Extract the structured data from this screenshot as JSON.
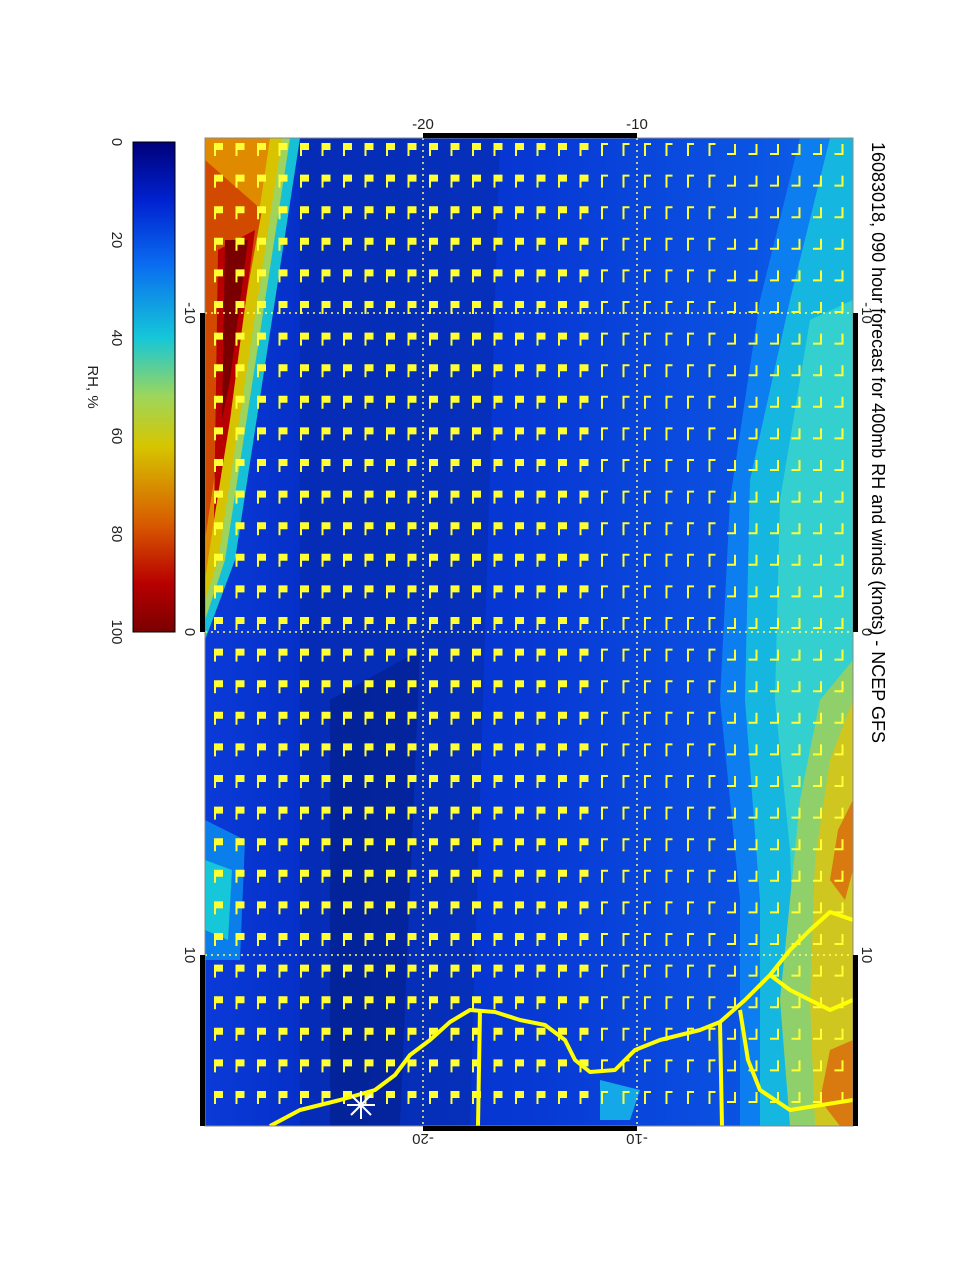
{
  "title": "16083018, 090 hour forecast for 400mb RH and winds (knots) - NCEP GFS",
  "colorbar": {
    "label": "RH, %",
    "ticks": [
      "0",
      "20",
      "40",
      "60",
      "80",
      "100"
    ],
    "stops": [
      "#00007a",
      "#0022d0",
      "#0a6cf0",
      "#15c7d8",
      "#9ed65a",
      "#d6c600",
      "#d85a00",
      "#b80000",
      "#7a0000"
    ]
  },
  "axes": {
    "top_ticks": [
      "-20",
      "-10"
    ],
    "bottom_ticks": [
      "-20",
      "-10"
    ],
    "left_ticks": [
      "-10",
      "0",
      "10"
    ],
    "right_ticks": [
      "-10",
      "0",
      "10"
    ]
  },
  "map": {
    "field": "400mb relative humidity",
    "units": "RH, %",
    "barb_units": "knots",
    "barb_color": "#ffff33",
    "coast_color": "#ffff00",
    "marker": "asterisk"
  }
}
